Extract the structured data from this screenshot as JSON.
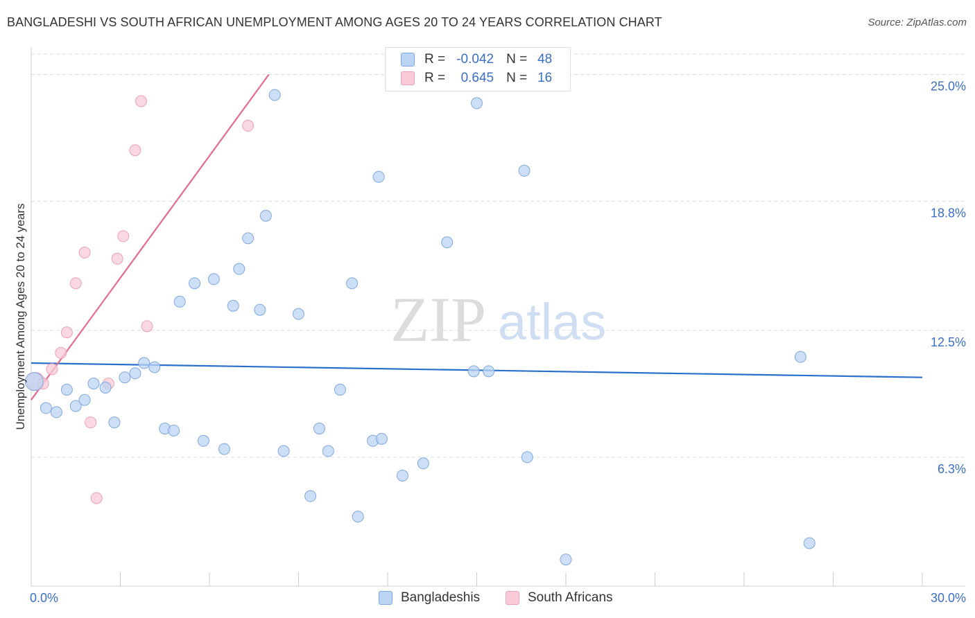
{
  "title": "BANGLADESHI VS SOUTH AFRICAN UNEMPLOYMENT AMONG AGES 20 TO 24 YEARS CORRELATION CHART",
  "source": "Source: ZipAtlas.com",
  "legend": {
    "rows": [
      {
        "r_label": "R =",
        "r_value": "-0.042",
        "n_label": "N =",
        "n_value": "48"
      },
      {
        "r_label": "R =",
        "r_value": "0.645",
        "n_label": "N =",
        "n_value": "16"
      }
    ]
  },
  "bottom_legend": {
    "series1": "Bangladeshis",
    "series2": "South Africans"
  },
  "watermark": {
    "part1": "ZIP",
    "part2": "atlas"
  },
  "colors": {
    "blue_fill": "#bcd4f3",
    "blue_stroke": "#7fa8e0",
    "blue_line": "#2a6fcc",
    "pink_fill": "#f8cbd7",
    "pink_stroke": "#eda0b6",
    "pink_line": "#e36b91",
    "tick_text": "#3a6fc4",
    "grid": "#dddddd"
  },
  "chart_data": {
    "type": "scatter",
    "title": "BANGLADESHI VS SOUTH AFRICAN UNEMPLOYMENT AMONG AGES 20 TO 24 YEARS CORRELATION CHART",
    "xlabel": "",
    "ylabel": "Unemployment Among Ages 20 to 24 years",
    "xlim": [
      0,
      30
    ],
    "ylim": [
      0,
      26
    ],
    "x_tick_labels": [
      {
        "value": 0,
        "label": "0.0%"
      },
      {
        "value": 30,
        "label": "30.0%"
      }
    ],
    "y_ticks": [
      {
        "value": 6.3,
        "label": "6.3%"
      },
      {
        "value": 12.5,
        "label": "12.5%"
      },
      {
        "value": 18.8,
        "label": "18.8%"
      },
      {
        "value": 25.0,
        "label": "25.0%"
      }
    ],
    "series": [
      {
        "name": "Bangladeshis",
        "r": -0.042,
        "n": 48,
        "trend": {
          "x": [
            0,
            30
          ],
          "y": [
            10.9,
            10.2
          ]
        },
        "points": [
          {
            "x": 0.1,
            "y": 10.0
          },
          {
            "x": 0.5,
            "y": 8.7
          },
          {
            "x": 0.85,
            "y": 8.5
          },
          {
            "x": 1.2,
            "y": 9.6
          },
          {
            "x": 1.5,
            "y": 8.8
          },
          {
            "x": 1.8,
            "y": 9.1
          },
          {
            "x": 2.1,
            "y": 9.9
          },
          {
            "x": 2.5,
            "y": 9.7
          },
          {
            "x": 2.8,
            "y": 8.0
          },
          {
            "x": 3.15,
            "y": 10.2
          },
          {
            "x": 3.5,
            "y": 10.4
          },
          {
            "x": 3.8,
            "y": 10.9
          },
          {
            "x": 4.15,
            "y": 10.7
          },
          {
            "x": 4.5,
            "y": 7.7
          },
          {
            "x": 4.8,
            "y": 7.6
          },
          {
            "x": 5.0,
            "y": 13.9
          },
          {
            "x": 5.5,
            "y": 14.8
          },
          {
            "x": 5.8,
            "y": 7.1
          },
          {
            "x": 6.15,
            "y": 15.0
          },
          {
            "x": 6.5,
            "y": 6.7
          },
          {
            "x": 6.8,
            "y": 13.7
          },
          {
            "x": 7.0,
            "y": 15.5
          },
          {
            "x": 7.3,
            "y": 17.0
          },
          {
            "x": 7.7,
            "y": 13.5
          },
          {
            "x": 7.9,
            "y": 18.1
          },
          {
            "x": 8.2,
            "y": 24.0
          },
          {
            "x": 8.5,
            "y": 6.6
          },
          {
            "x": 9.0,
            "y": 13.3
          },
          {
            "x": 9.4,
            "y": 4.4
          },
          {
            "x": 9.7,
            "y": 7.7
          },
          {
            "x": 10.0,
            "y": 6.6
          },
          {
            "x": 10.4,
            "y": 9.6
          },
          {
            "x": 10.8,
            "y": 14.8
          },
          {
            "x": 11.0,
            "y": 3.4
          },
          {
            "x": 11.5,
            "y": 7.1
          },
          {
            "x": 11.7,
            "y": 20.0
          },
          {
            "x": 11.8,
            "y": 7.2
          },
          {
            "x": 12.5,
            "y": 5.4
          },
          {
            "x": 13.2,
            "y": 6.0
          },
          {
            "x": 14.0,
            "y": 16.8
          },
          {
            "x": 14.9,
            "y": 10.5
          },
          {
            "x": 15.0,
            "y": 23.6
          },
          {
            "x": 15.4,
            "y": 10.5
          },
          {
            "x": 16.7,
            "y": 6.3
          },
          {
            "x": 16.6,
            "y": 20.3
          },
          {
            "x": 18.0,
            "y": 1.3
          },
          {
            "x": 25.9,
            "y": 11.2
          },
          {
            "x": 26.2,
            "y": 2.1
          }
        ]
      },
      {
        "name": "South Africans",
        "r": 0.645,
        "n": 16,
        "trend": {
          "x": [
            0,
            8.0
          ],
          "y": [
            9.1,
            25.0
          ]
        },
        "points": [
          {
            "x": 0.15,
            "y": 10.0
          },
          {
            "x": 0.4,
            "y": 9.9
          },
          {
            "x": 0.7,
            "y": 10.6
          },
          {
            "x": 1.0,
            "y": 11.4
          },
          {
            "x": 1.2,
            "y": 12.4
          },
          {
            "x": 1.5,
            "y": 14.8
          },
          {
            "x": 1.8,
            "y": 16.3
          },
          {
            "x": 2.0,
            "y": 8.0
          },
          {
            "x": 2.2,
            "y": 4.3
          },
          {
            "x": 2.6,
            "y": 9.9
          },
          {
            "x": 2.9,
            "y": 16.0
          },
          {
            "x": 3.1,
            "y": 17.1
          },
          {
            "x": 3.5,
            "y": 21.3
          },
          {
            "x": 3.7,
            "y": 23.7
          },
          {
            "x": 3.9,
            "y": 12.7
          },
          {
            "x": 7.3,
            "y": 22.5
          }
        ]
      }
    ]
  }
}
